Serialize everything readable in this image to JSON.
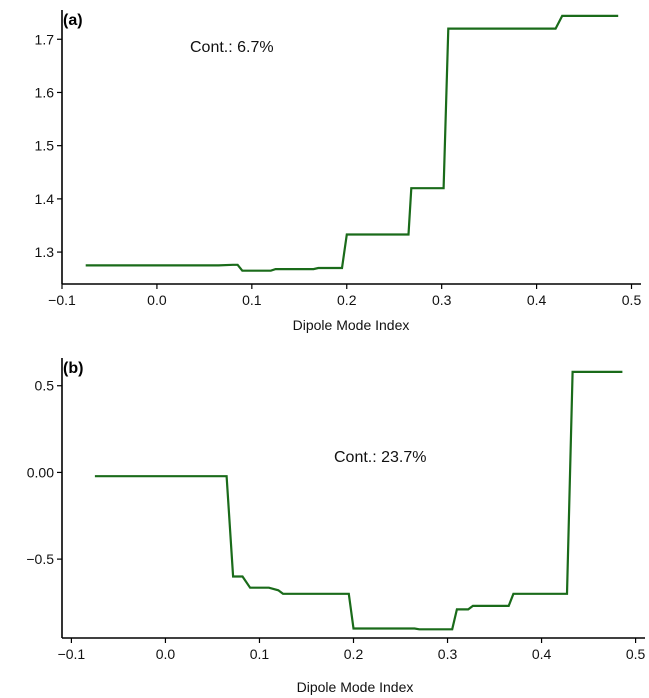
{
  "colors": {
    "series": "#1a6b1a"
  },
  "chart_data": [
    {
      "type": "line",
      "panel_label": "(a)",
      "xlabel": "Dipole Mode Index",
      "ylabel": "",
      "annotation": "Cont.: 6.7%",
      "xlim": [
        -0.1,
        0.51
      ],
      "ylim": [
        1.24,
        1.755
      ],
      "xticks": [
        -0.1,
        0.0,
        0.1,
        0.2,
        0.3,
        0.4,
        0.5
      ],
      "xtick_labels": [
        "−0.1",
        "0.0",
        "0.1",
        "0.2",
        "0.3",
        "0.4",
        "0.5"
      ],
      "yticks": [
        1.3,
        1.4,
        1.5,
        1.6,
        1.7
      ],
      "ytick_labels": [
        "1.3",
        "1.4",
        "1.5",
        "1.6",
        "1.7"
      ],
      "series": [
        {
          "x": [
            -0.075,
            0.065,
            0.08,
            0.085,
            0.09,
            0.12,
            0.125,
            0.165,
            0.17,
            0.195,
            0.2,
            0.255,
            0.265,
            0.268,
            0.272,
            0.302,
            0.307,
            0.312,
            0.355,
            0.42,
            0.427,
            0.433,
            0.486
          ],
          "y": [
            1.275,
            1.275,
            1.276,
            1.276,
            1.265,
            1.265,
            1.268,
            1.268,
            1.27,
            1.27,
            1.333,
            1.333,
            1.333,
            1.42,
            1.42,
            1.42,
            1.72,
            1.72,
            1.72,
            1.72,
            1.744,
            1.744,
            1.744
          ]
        }
      ]
    },
    {
      "type": "line",
      "panel_label": "(b)",
      "xlabel": "Dipole Mode Index",
      "ylabel": "",
      "annotation": "Cont.: 23.7%",
      "xlim": [
        -0.11,
        0.51
      ],
      "ylim": [
        -0.955,
        0.66
      ],
      "xticks": [
        -0.1,
        0.0,
        0.1,
        0.2,
        0.3,
        0.4,
        0.5
      ],
      "xtick_labels": [
        "−0.1",
        "0.0",
        "0.1",
        "0.2",
        "0.3",
        "0.4",
        "0.5"
      ],
      "yticks": [
        -0.5,
        0.0,
        0.5
      ],
      "ytick_labels": [
        "−0.5",
        "0.00",
        "0.5"
      ],
      "series": [
        {
          "x": [
            -0.075,
            0.065,
            0.072,
            0.082,
            0.09,
            0.11,
            0.12,
            0.125,
            0.195,
            0.2,
            0.265,
            0.27,
            0.3,
            0.305,
            0.31,
            0.322,
            0.327,
            0.365,
            0.37,
            0.427,
            0.433,
            0.486
          ],
          "y": [
            -0.022,
            -0.022,
            -0.6,
            -0.6,
            -0.665,
            -0.665,
            -0.68,
            -0.7,
            -0.7,
            -0.9,
            -0.9,
            -0.905,
            -0.905,
            -0.905,
            -0.79,
            -0.79,
            -0.77,
            -0.77,
            -0.7,
            -0.7,
            0.58,
            0.58
          ]
        }
      ]
    }
  ]
}
